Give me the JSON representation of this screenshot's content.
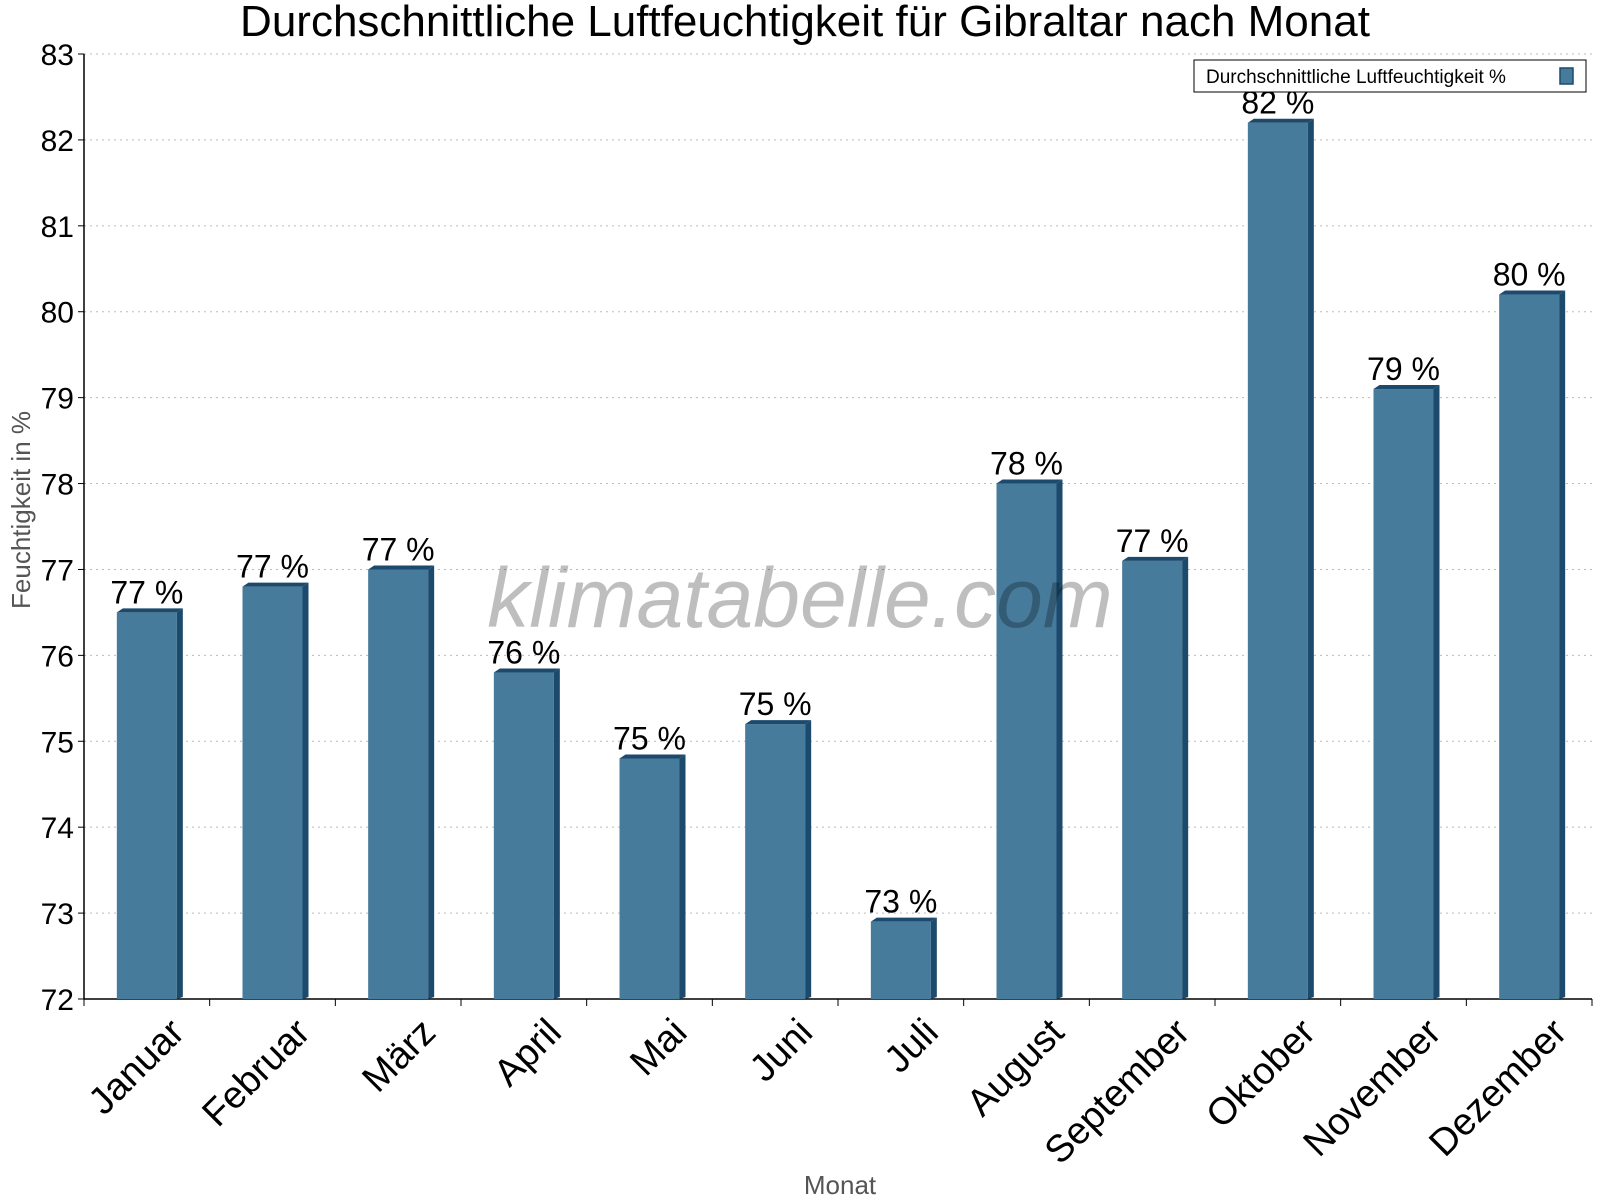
{
  "chart_data": {
    "type": "bar",
    "title": "Durchschnittliche Luftfeuchtigkeit für Gibraltar nach Monat",
    "xlabel": "Monat",
    "ylabel": "Feuchtigkeit in %",
    "ylim": [
      72,
      83
    ],
    "yticks": [
      "72",
      "73",
      "74",
      "75",
      "76",
      "77",
      "78",
      "79",
      "80",
      "81",
      "82",
      "83"
    ],
    "categories": [
      "Januar",
      "Februar",
      "März",
      "April",
      "Mai",
      "Juni",
      "Juli",
      "August",
      "September",
      "Oktober",
      "November",
      "Dezember"
    ],
    "series": [
      {
        "name": "Durchschnittliche Luftfeuchtigkeit %",
        "values": [
          76.5,
          76.8,
          77.0,
          75.8,
          74.8,
          75.2,
          72.9,
          78.0,
          77.1,
          82.2,
          79.1,
          80.2
        ],
        "labels": [
          "77 %",
          "77 %",
          "77 %",
          "76 %",
          "75 %",
          "75 %",
          "73 %",
          "78 %",
          "77 %",
          "82 %",
          "79 %",
          "80 %"
        ],
        "color": "#467b9c",
        "side_color": "#1c4a6c"
      }
    ],
    "grid": true,
    "legend_position": "top-right",
    "watermark": "klimatabelle.com"
  }
}
